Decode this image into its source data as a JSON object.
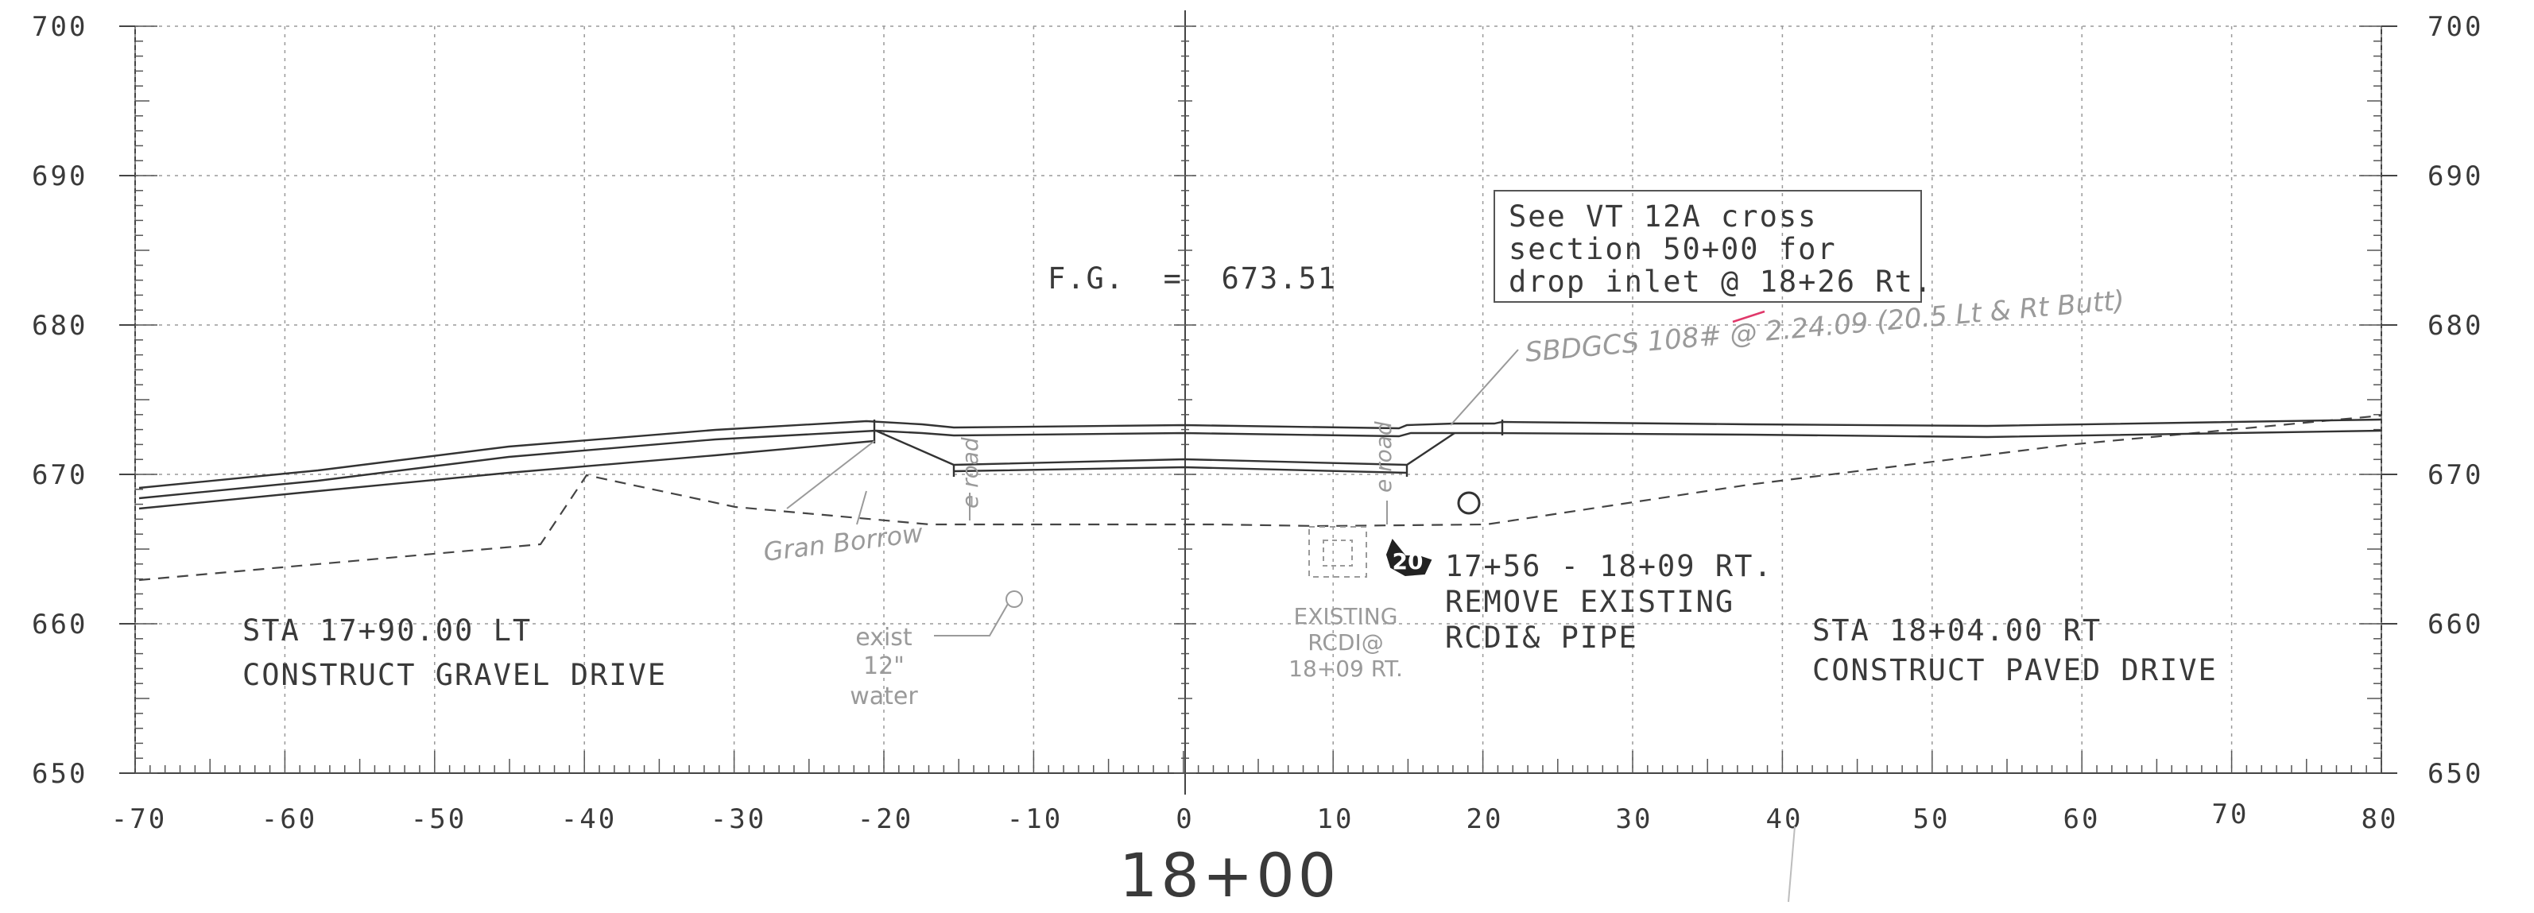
{
  "station": "18+00",
  "axes": {
    "x_ticks": [
      "-70",
      "-60",
      "-50",
      "-40",
      "-30",
      "-20",
      "-10",
      "0",
      "10",
      "20",
      "30",
      "40",
      "50",
      "60",
      "70",
      "80"
    ],
    "y_ticks": [
      "700",
      "690",
      "680",
      "670",
      "660",
      "650"
    ]
  },
  "notes": {
    "fg": "F.G.  =  673.51",
    "callout_box": [
      "See VT 12A cross",
      "section 50+00 for",
      "drop inlet @ 18+26 Rt."
    ],
    "left_sta": "STA 17+90.00 LT",
    "left_action": "CONSTRUCT GRAVEL DRIVE",
    "right_sta": "STA 18+04.00 RT",
    "right_action": "CONSTRUCT PAVED DRIVE",
    "remove_range": "17+56 - 18+09 RT.",
    "remove_action": "REMOVE EXISTING",
    "remove_item": "RCDI& PIPE",
    "hex_tag": "20",
    "existing_1": "EXISTING",
    "existing_2": "RCDI@",
    "existing_3": "18+09 RT.",
    "water_1": "exist",
    "water_2": "12\"",
    "water_3": "water",
    "gran_borrow": "Gran Borrow",
    "edge_road_1": "e road",
    "edge_road_2": "e road",
    "sbdgcs": "SBDGCS 108# @ 2.24.09 (20.5 Lt & Rt Butt)"
  },
  "colors": {
    "ink": "#3a3a3a",
    "grid": "#9a9a9a",
    "pencil": "#9a9a9a",
    "red_mark": "#e0386a"
  }
}
